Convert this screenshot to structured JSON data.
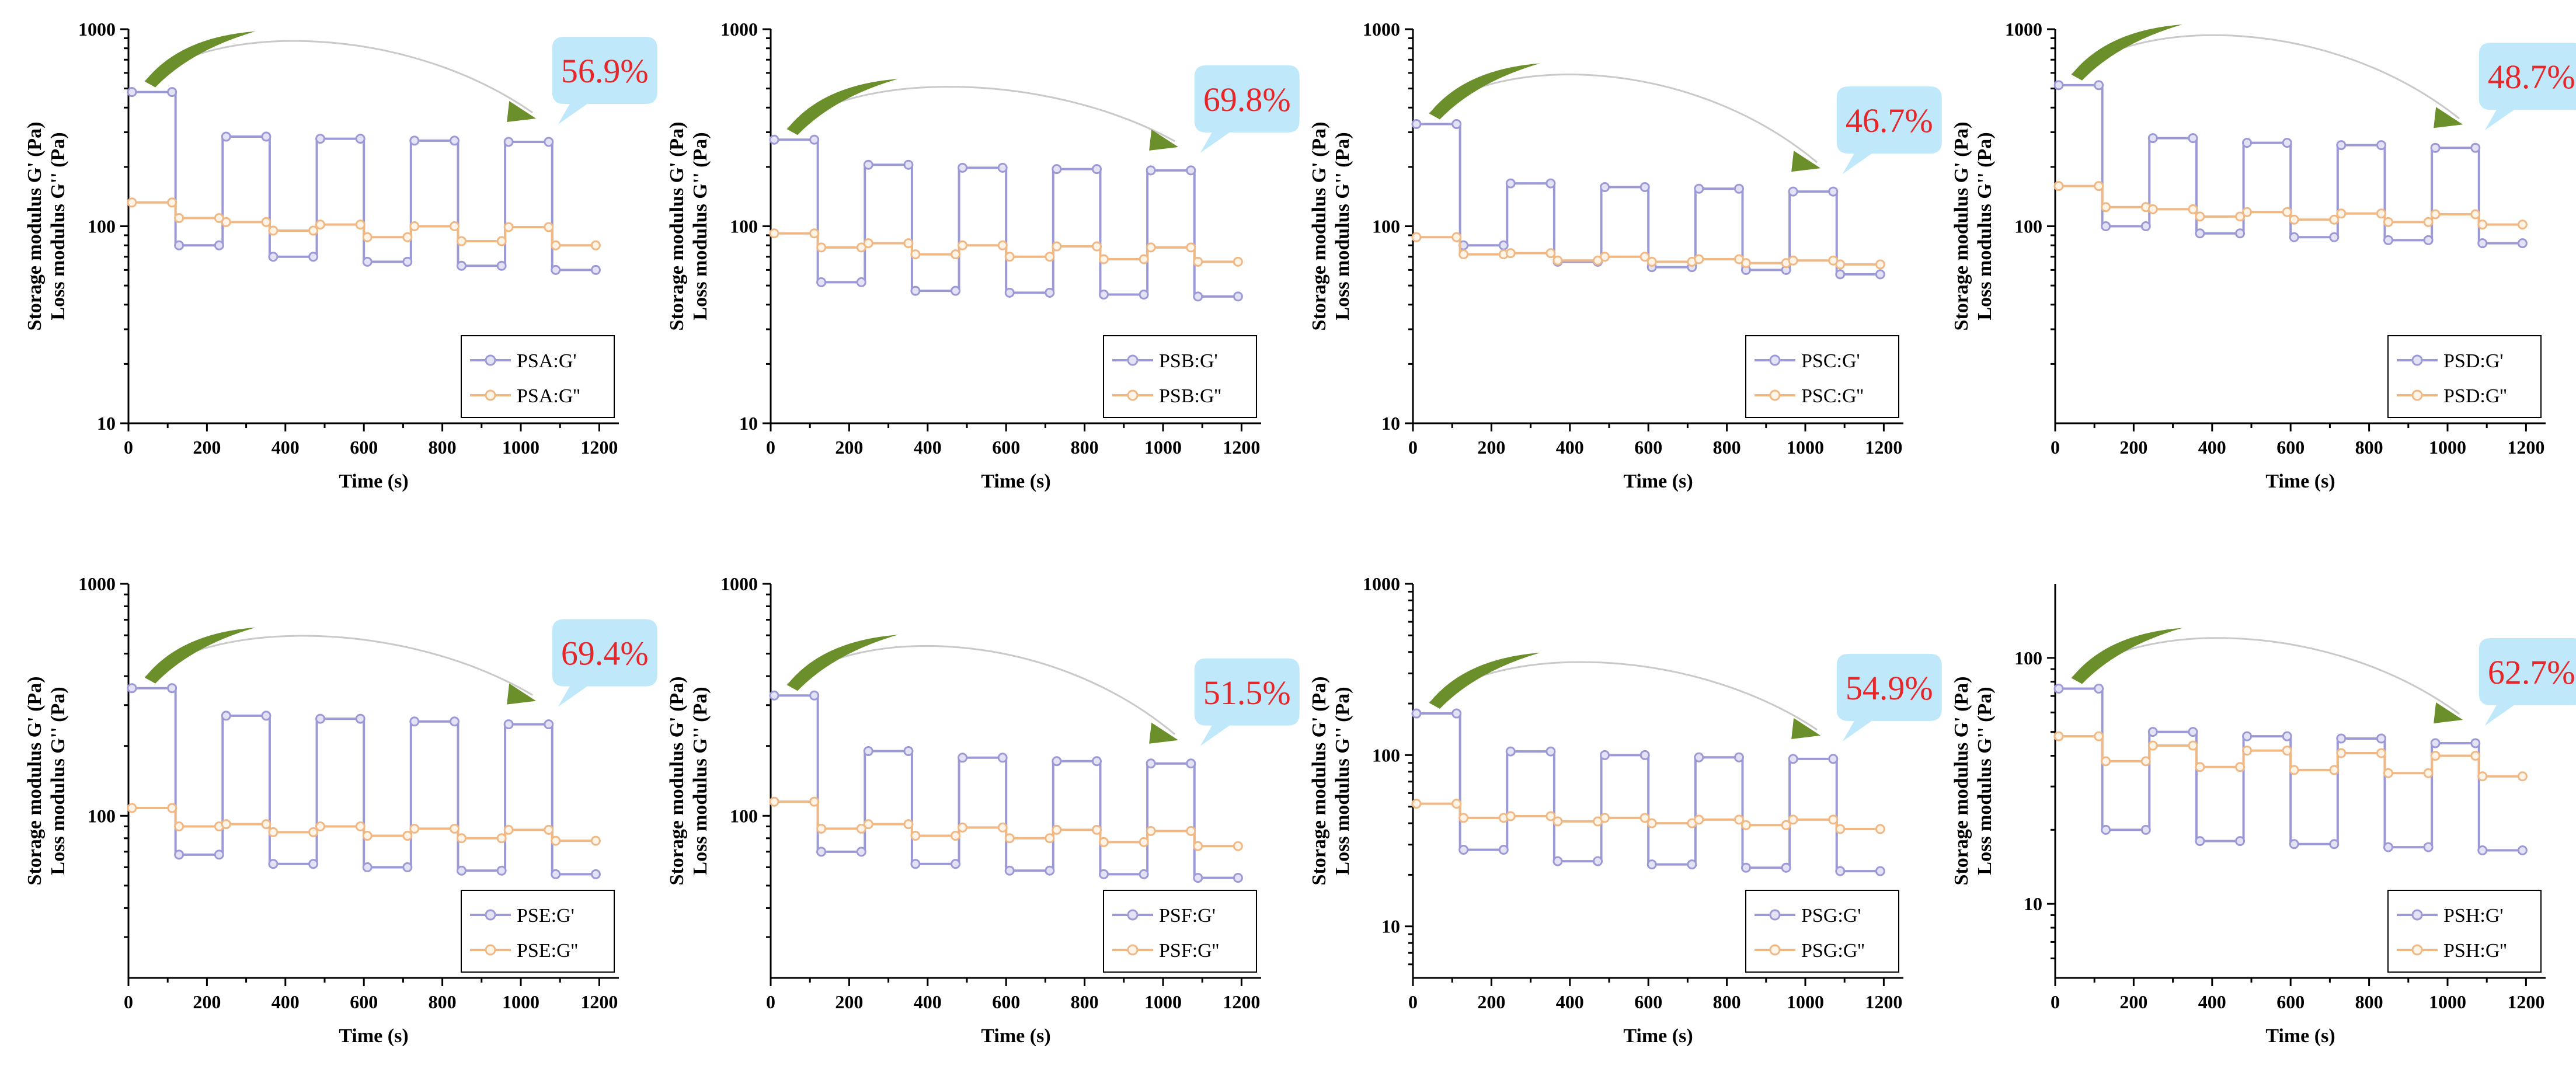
{
  "colors": {
    "g_prime": "#9b99d6",
    "g_double_prime": "#f0b884",
    "g_prime_marker_fill": "#e4e3f6",
    "g_double_prime_marker_fill": "#fff4e8",
    "arrow_green": "#6b8f2a",
    "callout_fill": "#bfe9fb",
    "callout_text": "#e8262a"
  },
  "chart_data": [
    {
      "type": "line",
      "log_y": true,
      "ylim": [
        10,
        1000
      ],
      "xlim": [
        0,
        1250
      ],
      "xticks": [
        0,
        200,
        400,
        600,
        800,
        1000,
        1200
      ],
      "yticks": [
        10,
        100,
        1000
      ],
      "ytick_labels": [
        "10",
        "100",
        "1000"
      ],
      "xlabel": "Time (s)",
      "ylabel_top": "Storage modulus G' (Pa)",
      "ylabel_bottom": "Loss modulus G'' (Pa)",
      "recovery_label": "56.9%",
      "series": [
        {
          "name": "PSA:G'",
          "kind": "g1",
          "levels": [
            480,
            80,
            285,
            70,
            278,
            66,
            272,
            63,
            268,
            60
          ]
        },
        {
          "name": "PSA:G''",
          "kind": "g2",
          "levels": [
            132,
            110,
            105,
            95,
            102,
            88,
            100,
            84,
            99,
            80
          ]
        }
      ]
    },
    {
      "type": "line",
      "log_y": true,
      "ylim": [
        10,
        1000
      ],
      "xlim": [
        0,
        1250
      ],
      "xticks": [
        0,
        200,
        400,
        600,
        800,
        1000,
        1200
      ],
      "yticks": [
        10,
        100,
        1000
      ],
      "ytick_labels": [
        "10",
        "100",
        "1000"
      ],
      "xlabel": "Time (s)",
      "ylabel_top": "Storage modulus G' (Pa)",
      "ylabel_bottom": "Loss modulus G'' (Pa)",
      "recovery_label": "69.8%",
      "series": [
        {
          "name": "PSB:G'",
          "kind": "g1",
          "levels": [
            275,
            52,
            205,
            47,
            198,
            46,
            195,
            45,
            192,
            44
          ]
        },
        {
          "name": "PSB:G''",
          "kind": "g2",
          "levels": [
            92,
            78,
            82,
            72,
            80,
            70,
            79,
            68,
            78,
            66
          ]
        }
      ]
    },
    {
      "type": "line",
      "log_y": true,
      "ylim": [
        10,
        1000
      ],
      "xlim": [
        0,
        1250
      ],
      "xticks": [
        0,
        200,
        400,
        600,
        800,
        1000,
        1200
      ],
      "yticks": [
        10,
        100,
        1000
      ],
      "ytick_labels": [
        "10",
        "100",
        "1000"
      ],
      "xlabel": "Time (s)",
      "ylabel_top": "Storage modulus G' (Pa)",
      "ylabel_bottom": "Loss modulus G'' (Pa)",
      "recovery_label": "46.7%",
      "series": [
        {
          "name": "PSC:G'",
          "kind": "g1",
          "levels": [
            330,
            80,
            165,
            66,
            158,
            62,
            155,
            60,
            150,
            57
          ]
        },
        {
          "name": "PSC:G''",
          "kind": "g2",
          "levels": [
            88,
            72,
            73,
            67,
            70,
            66,
            68,
            65,
            67,
            64
          ]
        }
      ]
    },
    {
      "type": "line",
      "log_y": true,
      "ylim": [
        10,
        1000
      ],
      "xlim": [
        0,
        1250
      ],
      "xticks": [
        0,
        200,
        400,
        600,
        800,
        1000,
        1200
      ],
      "yticks": [
        100,
        1000
      ],
      "ytick_labels": [
        "100",
        "1000"
      ],
      "xlabel": "Time (s)",
      "ylabel_top": "Storage modulus G' (Pa)",
      "ylabel_bottom": "Loss modulus G'' (Pa)",
      "recovery_label": "48.7%",
      "series": [
        {
          "name": "PSD:G'",
          "kind": "g1",
          "levels": [
            520,
            100,
            280,
            92,
            265,
            88,
            258,
            85,
            250,
            82
          ]
        },
        {
          "name": "PSD:G''",
          "kind": "g2",
          "levels": [
            160,
            125,
            122,
            112,
            118,
            108,
            116,
            105,
            115,
            102
          ]
        }
      ]
    },
    {
      "type": "line",
      "log_y": true,
      "ylim": [
        20,
        1000
      ],
      "xlim": [
        0,
        1250
      ],
      "xticks": [
        0,
        200,
        400,
        600,
        800,
        1000,
        1200
      ],
      "yticks": [
        100,
        1000
      ],
      "ytick_labels": [
        "100",
        "1000"
      ],
      "xlabel": "Time (s)",
      "ylabel_top": "Storage modulus G' (Pa)",
      "ylabel_bottom": "Loss modulus G'' (Pa)",
      "recovery_label": "69.4%",
      "series": [
        {
          "name": "PSE:G'",
          "kind": "g1",
          "levels": [
            355,
            68,
            270,
            62,
            262,
            60,
            255,
            58,
            248,
            56
          ]
        },
        {
          "name": "PSE:G''",
          "kind": "g2",
          "levels": [
            108,
            90,
            92,
            85,
            90,
            82,
            88,
            80,
            87,
            78
          ]
        }
      ]
    },
    {
      "type": "line",
      "log_y": true,
      "ylim": [
        20,
        1000
      ],
      "xlim": [
        0,
        1250
      ],
      "xticks": [
        0,
        200,
        400,
        600,
        800,
        1000,
        1200
      ],
      "yticks": [
        100,
        1000
      ],
      "ytick_labels": [
        "100",
        "1000"
      ],
      "xlabel": "Time (s)",
      "ylabel_top": "Storage modulus G' (Pa)",
      "ylabel_bottom": "Loss modulus G'' (Pa)",
      "recovery_label": "51.5%",
      "series": [
        {
          "name": "PSF:G'",
          "kind": "g1",
          "levels": [
            330,
            70,
            190,
            62,
            178,
            58,
            172,
            56,
            168,
            54
          ]
        },
        {
          "name": "PSF:G''",
          "kind": "g2",
          "levels": [
            115,
            88,
            92,
            82,
            89,
            80,
            87,
            77,
            86,
            74
          ]
        }
      ]
    },
    {
      "type": "line",
      "log_y": true,
      "ylim": [
        5,
        1000
      ],
      "xlim": [
        0,
        1250
      ],
      "xticks": [
        0,
        200,
        400,
        600,
        800,
        1000,
        1200
      ],
      "yticks": [
        10,
        100,
        1000
      ],
      "ytick_labels": [
        "10",
        "100",
        "1000"
      ],
      "xlabel": "Time (s)",
      "ylabel_top": "Storage modulus G' (Pa)",
      "ylabel_bottom": "Loss modulus G'' (Pa)",
      "recovery_label": "54.9%",
      "series": [
        {
          "name": "PSG:G'",
          "kind": "g1",
          "levels": [
            175,
            28,
            105,
            24,
            100,
            23,
            97,
            22,
            95,
            21
          ]
        },
        {
          "name": "PSG:G''",
          "kind": "g2",
          "levels": [
            52,
            43,
            44,
            41,
            43,
            40,
            42,
            39,
            42,
            37
          ]
        }
      ]
    },
    {
      "type": "line",
      "log_y": true,
      "ylim": [
        5,
        200
      ],
      "xlim": [
        0,
        1250
      ],
      "xticks": [
        0,
        200,
        400,
        600,
        800,
        1000,
        1200
      ],
      "yticks": [
        10,
        100
      ],
      "ytick_labels": [
        "10",
        "100"
      ],
      "xlabel": "Time (s)",
      "ylabel_top": "Storage modulus G' (Pa)",
      "ylabel_bottom": "Loss modulus G'' (Pa)",
      "recovery_label": "62.7%",
      "series": [
        {
          "name": "PSH:G'",
          "kind": "g1",
          "levels": [
            75,
            20,
            50,
            18,
            48,
            17.5,
            47,
            17,
            45,
            16.5
          ]
        },
        {
          "name": "PSH:G''",
          "kind": "g2",
          "levels": [
            48,
            38,
            44,
            36,
            42,
            35,
            41,
            34,
            40,
            33
          ]
        }
      ]
    }
  ]
}
